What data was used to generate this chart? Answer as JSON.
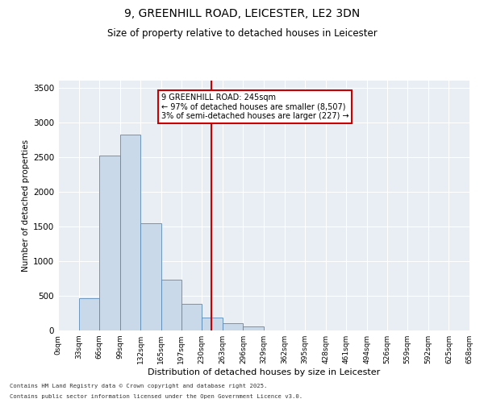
{
  "title_line1": "9, GREENHILL ROAD, LEICESTER, LE2 3DN",
  "title_line2": "Size of property relative to detached houses in Leicester",
  "xlabel": "Distribution of detached houses by size in Leicester",
  "ylabel": "Number of detached properties",
  "footnote1": "Contains HM Land Registry data © Crown copyright and database right 2025.",
  "footnote2": "Contains public sector information licensed under the Open Government Licence v3.0.",
  "annotation_title": "9 GREENHILL ROAD: 245sqm",
  "annotation_line1": "← 97% of detached houses are smaller (8,507)",
  "annotation_line2": "3% of semi-detached houses are larger (227) →",
  "property_size": 245,
  "bin_edges": [
    0,
    33,
    66,
    99,
    132,
    165,
    197,
    230,
    263,
    296,
    329,
    362,
    395,
    428,
    461,
    494,
    526,
    559,
    592,
    625,
    658
  ],
  "bin_counts": [
    3,
    467,
    2521,
    2826,
    1540,
    730,
    380,
    185,
    100,
    55,
    0,
    0,
    0,
    0,
    0,
    0,
    0,
    0,
    0,
    0
  ],
  "bar_color": "#c9d9ea",
  "bar_edge_color": "#5a8ab5",
  "vline_color": "#cc0000",
  "vline_x": 245,
  "annotation_box_color": "#cc0000",
  "annotation_bg": "#ffffff",
  "background_color": "#e8eef4",
  "ylim": [
    0,
    3600
  ],
  "yticks": [
    0,
    500,
    1000,
    1500,
    2000,
    2500,
    3000,
    3500
  ]
}
